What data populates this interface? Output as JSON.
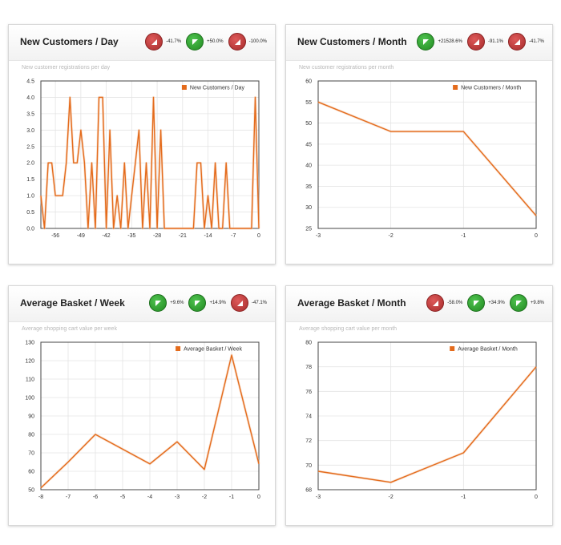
{
  "colors": {
    "series": "#e46b1c",
    "grid": "#e4e4e4",
    "up": "#2f9e2f",
    "down": "#c13a3a"
  },
  "panels": [
    {
      "title": "New Customers / Day",
      "subtitle": "New customer registrations per day",
      "badges": [
        {
          "direction": "down",
          "text": "-41.7%"
        },
        {
          "direction": "up",
          "text": "+50.0%"
        },
        {
          "direction": "down",
          "text": "-100.0%"
        }
      ]
    },
    {
      "title": "New Customers / Month",
      "subtitle": "New customer registrations per month",
      "badges": [
        {
          "direction": "up",
          "text": "+21528.6%"
        },
        {
          "direction": "down",
          "text": "-91.1%"
        },
        {
          "direction": "down",
          "text": "-41.7%"
        }
      ]
    },
    {
      "title": "Average Basket / Week",
      "subtitle": "Average shopping cart value per week",
      "badges": [
        {
          "direction": "up",
          "text": "+9.6%"
        },
        {
          "direction": "up",
          "text": "+14.9%"
        },
        {
          "direction": "down",
          "text": "-47.1%"
        }
      ]
    },
    {
      "title": "Average Basket / Month",
      "subtitle": "Average shopping cart value per month",
      "badges": [
        {
          "direction": "down",
          "text": "-58.0%"
        },
        {
          "direction": "up",
          "text": "+34.9%"
        },
        {
          "direction": "up",
          "text": "+9.8%"
        }
      ]
    }
  ],
  "chart_data": [
    {
      "type": "line",
      "legend_position": "top-right",
      "series": [
        {
          "name": "New Customers / Day",
          "x": [
            -60,
            -59,
            -58,
            -57,
            -56,
            -55,
            -54,
            -53,
            -52,
            -51,
            -50,
            -49,
            -48,
            -47,
            -46,
            -45,
            -44,
            -43,
            -42,
            -41,
            -40,
            -39,
            -38,
            -37,
            -36,
            -35,
            -34,
            -33,
            -32,
            -31,
            -30,
            -29,
            -28,
            -27,
            -26,
            -25,
            -24,
            -23,
            -22,
            -21,
            -20,
            -19,
            -18,
            -17,
            -16,
            -15,
            -14,
            -13,
            -12,
            -11,
            -10,
            -9,
            -8,
            -7,
            -6,
            -5,
            -4,
            -3,
            -2,
            -1,
            0
          ],
          "values": [
            1,
            0,
            2,
            2,
            1,
            1,
            1,
            2,
            4,
            2,
            2,
            3,
            2,
            0,
            2,
            0,
            4,
            4,
            0,
            3,
            0,
            1,
            0,
            2,
            0,
            1,
            2,
            3,
            0,
            2,
            0,
            4,
            0,
            3,
            0,
            0,
            0,
            0,
            0,
            0,
            0,
            0,
            0,
            2,
            2,
            0,
            1,
            0,
            2,
            0,
            0,
            2,
            0,
            0,
            0,
            0,
            0,
            0,
            0,
            4,
            0
          ]
        }
      ],
      "xticks": [
        -56,
        -49,
        -42,
        -35,
        -28,
        -21,
        -14,
        -7,
        0
      ],
      "yticks": [
        0.0,
        0.5,
        1.0,
        1.5,
        2.0,
        2.5,
        3.0,
        3.5,
        4.0,
        4.5
      ],
      "ytick_labels": [
        "0.0",
        "0.5",
        "1.0",
        "1.5",
        "2.0",
        "2.5",
        "3.0",
        "3.5",
        "4.0",
        "4.5"
      ],
      "xlim": [
        -60,
        0
      ],
      "ylim": [
        0,
        4.5
      ],
      "grid": true
    },
    {
      "type": "line",
      "legend_position": "top-right",
      "series": [
        {
          "name": "New Customers / Month",
          "x": [
            -3,
            -2,
            -1,
            0
          ],
          "values": [
            55,
            48,
            48,
            28
          ]
        }
      ],
      "xticks": [
        -3,
        -2,
        -1,
        0
      ],
      "yticks": [
        25,
        30,
        35,
        40,
        45,
        50,
        55,
        60
      ],
      "ytick_labels": [
        "25",
        "30",
        "35",
        "40",
        "45",
        "50",
        "55",
        "60"
      ],
      "xlim": [
        -3,
        0
      ],
      "ylim": [
        25,
        60
      ],
      "grid": true
    },
    {
      "type": "line",
      "legend_position": "top-right",
      "series": [
        {
          "name": "Average Basket / Week",
          "x": [
            -8,
            -7,
            -6,
            -5,
            -4,
            -3,
            -2,
            -1,
            0
          ],
          "values": [
            51,
            65,
            80,
            72,
            64,
            76,
            61,
            123,
            64
          ]
        }
      ],
      "xticks": [
        -8,
        -7,
        -6,
        -5,
        -4,
        -3,
        -2,
        -1,
        0
      ],
      "yticks": [
        50,
        60,
        70,
        80,
        90,
        100,
        110,
        120,
        130
      ],
      "ytick_labels": [
        "50",
        "60",
        "70",
        "80",
        "90",
        "100",
        "110",
        "120",
        "130"
      ],
      "xlim": [
        -8,
        0
      ],
      "ylim": [
        50,
        130
      ],
      "grid": true
    },
    {
      "type": "line",
      "legend_position": "top-right",
      "series": [
        {
          "name": "Average Basket / Month",
          "x": [
            -3,
            -2,
            -1,
            0
          ],
          "values": [
            69.5,
            68.6,
            71,
            78
          ]
        }
      ],
      "xticks": [
        -3,
        -2,
        -1,
        0
      ],
      "yticks": [
        68,
        70,
        72,
        74,
        76,
        78,
        80
      ],
      "ytick_labels": [
        "68",
        "70",
        "72",
        "74",
        "76",
        "78",
        "80"
      ],
      "xlim": [
        -3,
        0
      ],
      "ylim": [
        68,
        80
      ],
      "grid": true
    }
  ]
}
